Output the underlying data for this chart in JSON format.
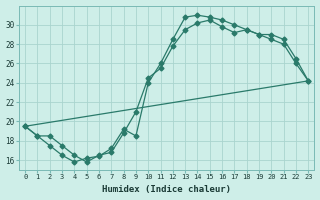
{
  "bg_color": "#ceeee8",
  "grid_color": "#aad4ce",
  "line_color": "#2a7a6a",
  "line1_x": [
    0,
    1,
    2,
    3,
    4,
    5,
    6,
    7,
    8,
    9,
    10,
    11,
    12,
    13,
    14,
    15,
    16,
    17,
    18,
    19,
    20,
    21,
    22,
    23
  ],
  "line1_y": [
    19.5,
    18.5,
    17.5,
    16.5,
    15.8,
    16.2,
    16.4,
    17.2,
    19.2,
    18.5,
    24.0,
    26.0,
    28.5,
    30.8,
    31.0,
    30.8,
    30.5,
    30.0,
    29.5,
    29.0,
    28.5,
    28.0,
    26.0,
    24.2
  ],
  "line2_x": [
    0,
    1,
    2,
    3,
    4,
    5,
    6,
    7,
    8,
    9,
    10,
    11,
    12,
    13,
    14,
    15,
    16,
    17,
    18,
    19,
    20,
    21,
    22,
    23
  ],
  "line2_y": [
    19.5,
    18.5,
    18.5,
    17.5,
    16.5,
    15.8,
    16.5,
    16.8,
    18.8,
    21.0,
    24.5,
    25.5,
    27.8,
    29.5,
    30.2,
    30.5,
    29.8,
    29.2,
    29.5,
    29.0,
    29.0,
    28.5,
    26.5,
    24.2
  ],
  "line3_x": [
    0,
    23
  ],
  "line3_y": [
    19.5,
    24.2
  ],
  "xlabel": "Humidex (Indice chaleur)",
  "xlim": [
    -0.5,
    23.5
  ],
  "ylim": [
    15.0,
    32.0
  ],
  "yticks": [
    16,
    18,
    20,
    22,
    24,
    26,
    28,
    30
  ],
  "xticks": [
    0,
    1,
    2,
    3,
    4,
    5,
    6,
    7,
    8,
    9,
    10,
    11,
    12,
    13,
    14,
    15,
    16,
    17,
    18,
    19,
    20,
    21,
    22,
    23
  ],
  "xtick_labels": [
    "0",
    "1",
    "2",
    "3",
    "4",
    "5",
    "6",
    "7",
    "8",
    "9",
    "10",
    "11",
    "12",
    "13",
    "14",
    "15",
    "16",
    "17",
    "18",
    "19",
    "20",
    "21",
    "22",
    "23"
  ]
}
